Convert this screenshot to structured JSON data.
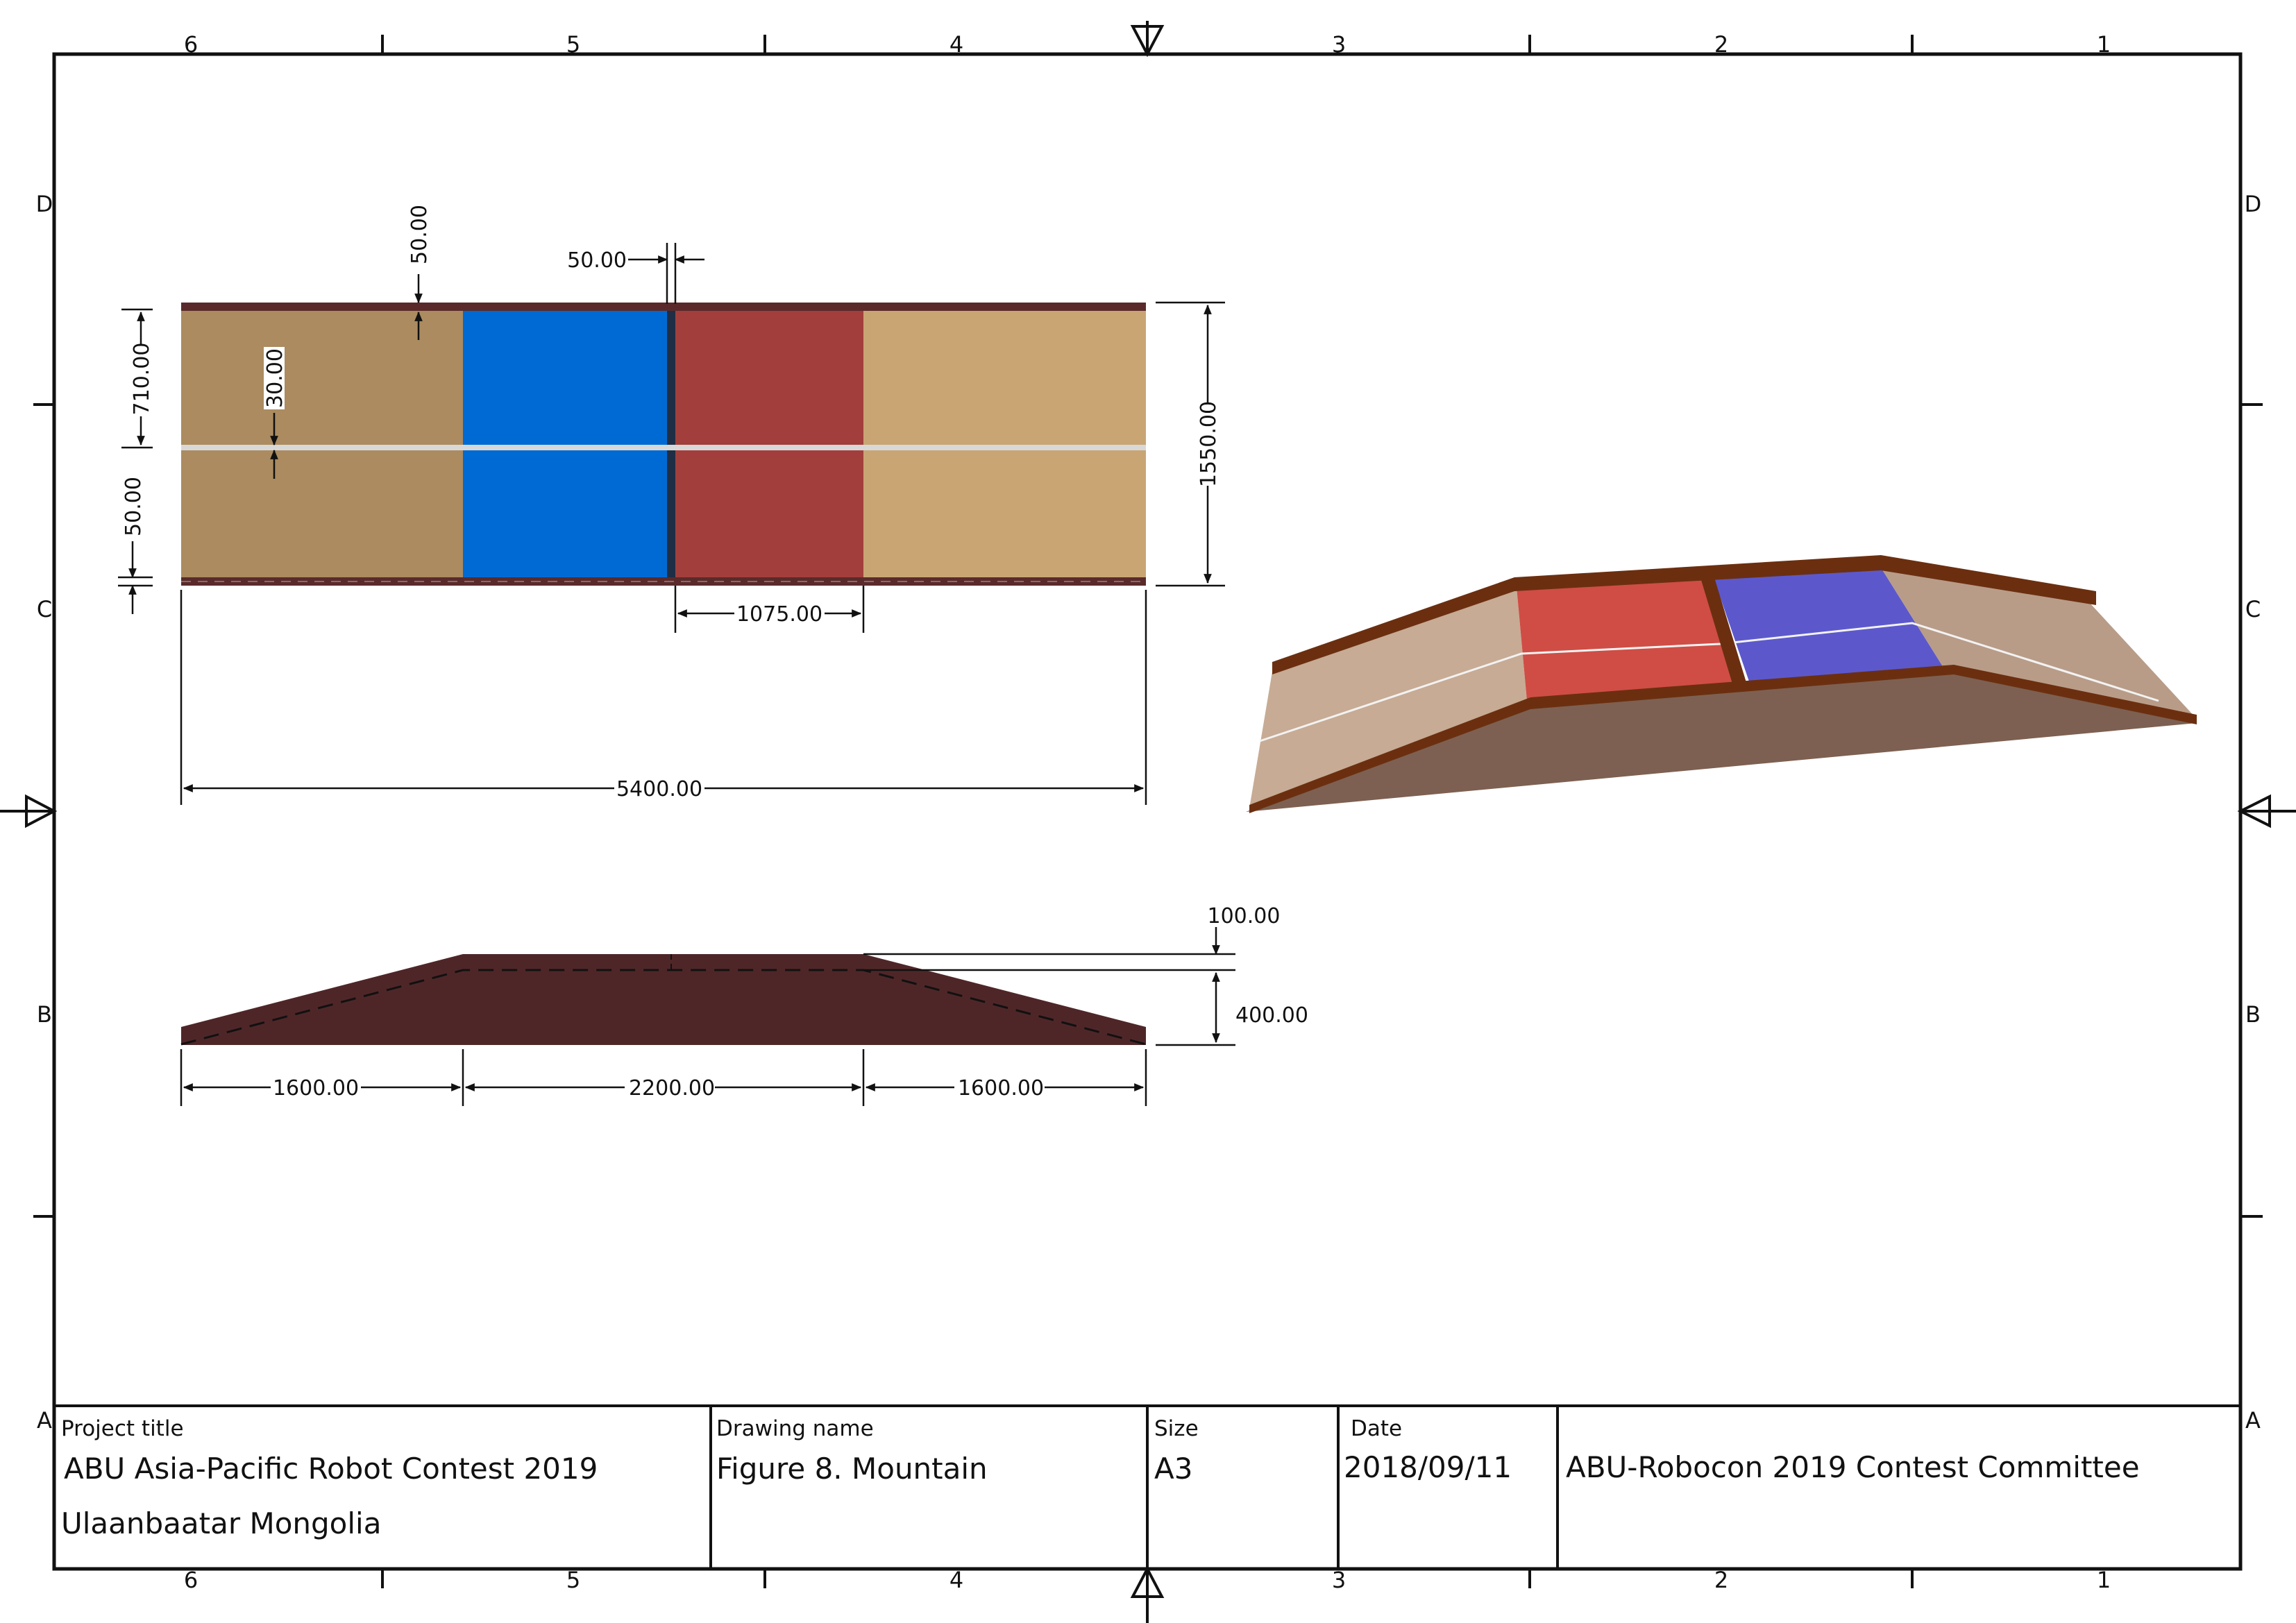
{
  "grid": {
    "columns": [
      "6",
      "5",
      "4",
      "3",
      "2",
      "1"
    ],
    "rows": [
      "D",
      "C",
      "B",
      "A"
    ]
  },
  "dimensions": {
    "top_rail": "50.00",
    "divider": "50.00",
    "upper_half": "710.00",
    "center_line": "30.00",
    "lower_rail": "50.00",
    "overall_width": "1550.00",
    "zone_length": "1075.00",
    "overall_length": "5400.00",
    "rail_height": "100.00",
    "mountain_height": "400.00",
    "slope_left": "1600.00",
    "plateau": "2200.00",
    "slope_right": "1600.00"
  },
  "title_block": {
    "project_title_label": "Project title",
    "project_title_line1": "ABU Asia-Pacific Robot Contest 2019",
    "project_title_line2": "Ulaanbaatar Mongolia",
    "drawing_name_label": "Drawing name",
    "drawing_name": "Figure 8. Mountain",
    "size_label": "Size",
    "size": "A3",
    "date_label": "Date",
    "date": "2018/09/11",
    "author": "ABU-Robocon 2019 Contest Committee"
  },
  "colors": {
    "frame": "#111111",
    "rail": "#5a2a2a",
    "slope_left": "#ab8b5f",
    "slope_right": "#c9a574",
    "blue_zone": "#006ad4",
    "red_zone": "#a23f3c",
    "center_line": "#d8d8d8",
    "profile": "#4f2628",
    "iso_rail": "#6b2f10",
    "iso_slope": "#c7ab94",
    "iso_red": "#cf4d45",
    "iso_blue": "#5c58cc",
    "iso_side": "#7d6051"
  }
}
